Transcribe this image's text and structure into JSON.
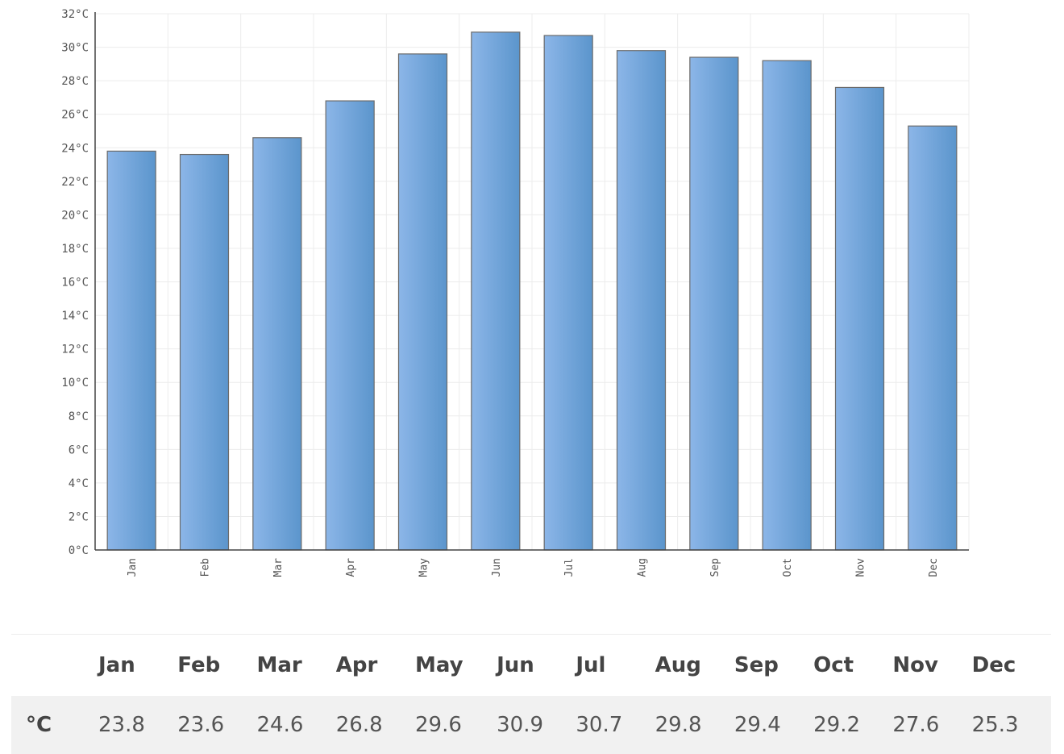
{
  "chart_data": {
    "type": "bar",
    "categories": [
      "Jan",
      "Feb",
      "Mar",
      "Apr",
      "May",
      "Jun",
      "Jul",
      "Aug",
      "Sep",
      "Oct",
      "Nov",
      "Dec"
    ],
    "values": [
      23.8,
      23.6,
      24.6,
      26.8,
      29.6,
      30.9,
      30.7,
      29.8,
      29.4,
      29.2,
      27.6,
      25.3
    ],
    "ylim": [
      0,
      32
    ],
    "y_ticks": [
      "0°C",
      "2°C",
      "4°C",
      "6°C",
      "8°C",
      "10°C",
      "12°C",
      "14°C",
      "16°C",
      "18°C",
      "20°C",
      "22°C",
      "24°C",
      "26°C",
      "28°C",
      "30°C",
      "32°C"
    ],
    "grid": true,
    "bar_color": "#6a9fd6",
    "bar_border": "#6b6b6b"
  },
  "table": {
    "headers": [
      "",
      "Jan",
      "Feb",
      "Mar",
      "Apr",
      "May",
      "Jun",
      "Jul",
      "Aug",
      "Sep",
      "Oct",
      "Nov",
      "Dec"
    ],
    "row_label": "°C",
    "values": [
      "23.8",
      "23.6",
      "24.6",
      "26.8",
      "29.6",
      "30.9",
      "30.7",
      "29.8",
      "29.4",
      "29.2",
      "27.6",
      "25.3"
    ]
  }
}
